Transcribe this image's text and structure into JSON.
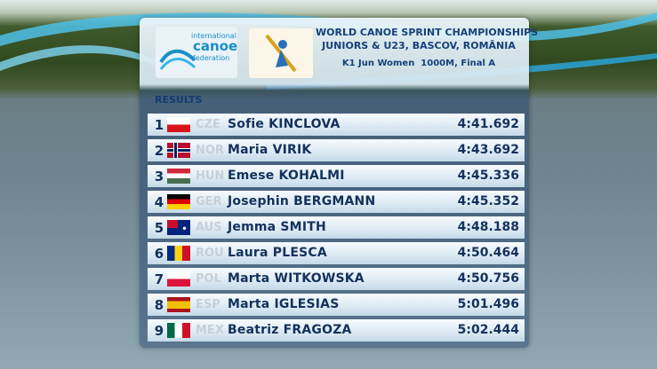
{
  "header": {
    "logo": [
      "international",
      "canoe",
      "federation"
    ],
    "title": "WORLD CANOE SPRINT CHAMPIONSHIPS",
    "subtitle": "JUNIORS & U23, BASCOV, ROMÂNIA",
    "event": "K1 Jun Women  1000M, Final A"
  },
  "results_label": "RESULTS",
  "table": {
    "rows": [
      [
        1,
        "CZE",
        "Sofie KINCLOVA",
        "4:41.692"
      ],
      [
        2,
        "NOR",
        "Maria VIRIK",
        "4:43.692"
      ],
      [
        3,
        "HUN",
        "Emese KOHALMI",
        "4:45.336"
      ],
      [
        4,
        "GER",
        "Josephin BERGMANN",
        "4:45.352"
      ],
      [
        5,
        "AUS",
        "Jemma SMITH",
        "4:48.188"
      ],
      [
        6,
        "ROU",
        "Laura PLESCA",
        "4:50.464"
      ],
      [
        7,
        "POL",
        "Marta WITKOWSKA",
        "4:50.756"
      ],
      [
        8,
        "ESP",
        "Marta IGLESIAS",
        "5:01.496"
      ],
      [
        9,
        "MEX",
        "Beatriz FRAGOZA",
        "5:02.444"
      ]
    ]
  }
}
